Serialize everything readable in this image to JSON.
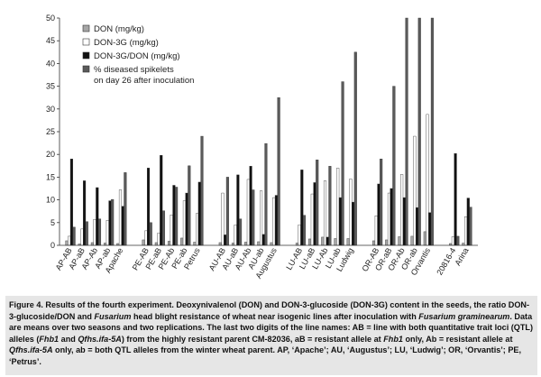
{
  "chart_data": {
    "type": "bar",
    "ylim": [
      0,
      50
    ],
    "yticks": [
      0,
      5,
      10,
      15,
      20,
      25,
      30,
      35,
      40,
      45,
      50
    ],
    "legend_position": "top-left",
    "series": [
      {
        "name": "DON (mg/kg)",
        "color": "#a6a6a6"
      },
      {
        "name": "DON-3G (mg/kg)",
        "color": "#ffffff"
      },
      {
        "name": "DON-3G/DON (mg/kg)",
        "color": "#111111"
      },
      {
        "name": "% diseased spikelets",
        "name2": "on day 26 after inoculation",
        "color": "#5a5a5a"
      }
    ],
    "categories": [
      "AP-AB",
      "AP-aB",
      "AP-Ab",
      "AP-ab",
      "Apache",
      "PE-AB",
      "PE-aB",
      "PE-Ab",
      "PE-ab",
      "Petrus",
      "AU-AB",
      "AU-aB",
      "AU-Ab",
      "AU-ab",
      "Augustus",
      "LU-AB",
      "LU-aB",
      "LU-Ab",
      "LU-ab",
      "Ludwig",
      "OR-AB",
      "OR-aB",
      "OR-Ab",
      "OR-ab",
      "Orvantis",
      "20816-4",
      "Arina"
    ],
    "groups": [
      5,
      5,
      5,
      5,
      5,
      2
    ],
    "values": [
      [
        1.0,
        2.0,
        19.0,
        4.0
      ],
      [
        0.3,
        3.6,
        14.2,
        5.2
      ],
      [
        0.6,
        5.7,
        12.7,
        5.8
      ],
      [
        0.5,
        5.5,
        9.8,
        10.1
      ],
      [
        0.4,
        12.2,
        8.6,
        16.0
      ],
      [
        1.2,
        3.2,
        17.0,
        5.0
      ],
      [
        0.6,
        2.7,
        19.8,
        7.6
      ],
      [
        0.9,
        6.7,
        13.2,
        12.8
      ],
      [
        1.6,
        9.8,
        11.5,
        17.5
      ],
      [
        0.7,
        7.0,
        13.9,
        24.0
      ],
      [
        0.6,
        11.5,
        2.3,
        15.0
      ],
      [
        0.5,
        4.5,
        15.5,
        5.8
      ],
      [
        0.7,
        14.5,
        17.4,
        12.2
      ],
      [
        0.8,
        12.0,
        2.4,
        22.4
      ],
      [
        0.6,
        10.5,
        11.0,
        32.5
      ],
      [
        0.5,
        4.5,
        16.6,
        6.6
      ],
      [
        1.4,
        11.3,
        13.8,
        18.8
      ],
      [
        1.8,
        14.2,
        1.8,
        17.4
      ],
      [
        1.5,
        17.0,
        10.5,
        36.0
      ],
      [
        1.5,
        14.6,
        9.5,
        42.5
      ],
      [
        1.0,
        6.5,
        13.5,
        19.0
      ],
      [
        1.2,
        11.5,
        12.5,
        35.0
      ],
      [
        1.9,
        15.6,
        10.5,
        50.0
      ],
      [
        2.0,
        24.0,
        8.3,
        50.0
      ],
      [
        3.0,
        28.8,
        7.2,
        50.0
      ],
      [
        0.4,
        1.9,
        20.2,
        2.0
      ],
      [
        0.5,
        6.3,
        10.4,
        8.4
      ]
    ]
  },
  "caption": {
    "p1": "Figure 4. Results of the fourth experiment. Deoxynivalenol (DON) and DON-3-glucoside (DON-3G) content in the seeds, the ratio DON-3-glucoside/DON and ",
    "i1": "Fusarium",
    "p2": " head blight resistance of wheat near isogenic lines after inoculation with ",
    "i2": "Fusarium graminearum",
    "p3": ". Data are means over two seasons and two replications. The last two digits of the line names: AB = line with both quantitative trait loci (QTL) alleles (",
    "i3": "Fhb1",
    "p4": " and ",
    "i4": "Qfhs.ifa-5A",
    "p5": ") from the highly resistant parent CM-82036, aB = resistant allele at ",
    "i5": "Fhb1",
    "p6": " only, Ab = resistant allele at ",
    "i6": "Qfhs.ifa-5A",
    "p7": " only, ab = both QTL alleles from the winter wheat parent. AP, ‘Apache’; AU, ‘Augustus’; LU, ‘Ludwig’; OR, ‘Orvantis’; PE, ‘Petrus’."
  }
}
